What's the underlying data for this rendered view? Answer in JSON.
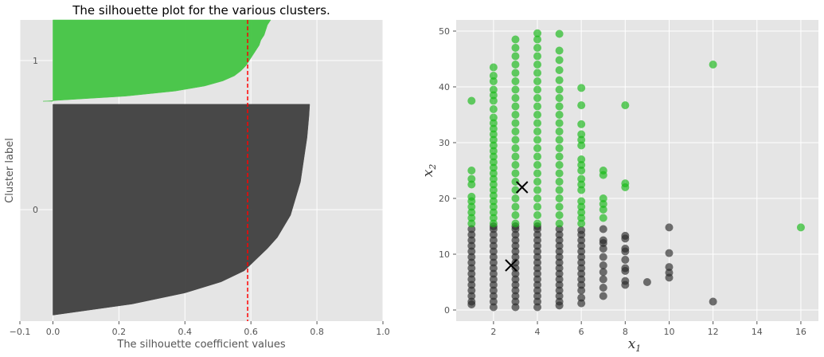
{
  "chart_data": [
    {
      "type": "area",
      "title": "The silhouette plot for the various clusters.",
      "xlabel": "The silhouette coefficient values",
      "ylabel": "Cluster label",
      "xlim": [
        -0.1,
        1.0
      ],
      "xticks": [
        "−0.1",
        "0.0",
        "0.2",
        "0.4",
        "0.6",
        "0.8",
        "1.0"
      ],
      "yticks": [
        "0",
        "1"
      ],
      "grid": true,
      "average_silhouette": 0.59,
      "clusters": [
        {
          "label": "0",
          "color": "#404040",
          "profile": [
            0.0,
            0.24,
            0.4,
            0.51,
            0.58,
            0.615,
            0.65,
            0.68,
            0.7,
            0.72,
            0.73,
            0.74,
            0.75,
            0.755,
            0.76,
            0.765,
            0.77,
            0.773,
            0.776,
            0.778
          ]
        },
        {
          "label": "1",
          "color": "#44c544",
          "profile": [
            -0.03,
            0.22,
            0.37,
            0.46,
            0.515,
            0.55,
            0.57,
            0.585,
            0.595,
            0.605,
            0.615,
            0.625,
            0.63,
            0.64,
            0.645,
            0.65,
            0.66
          ]
        }
      ]
    },
    {
      "type": "scatter",
      "title": "",
      "xlabel": "x1",
      "ylabel": "x2",
      "xlim": [
        0.3,
        16.8
      ],
      "ylim": [
        -2,
        52
      ],
      "xticks": [
        "2",
        "4",
        "6",
        "8",
        "10",
        "12",
        "14",
        "16"
      ],
      "yticks": [
        "0",
        "10",
        "20",
        "30",
        "40",
        "50"
      ],
      "grid": true,
      "series": [
        {
          "color": "#2a2a2a",
          "points": [
            [
              1,
              1
            ],
            [
              1,
              1.5
            ],
            [
              1,
              2.5
            ],
            [
              1,
              3.5
            ],
            [
              1,
              4.5
            ],
            [
              1,
              5.5
            ],
            [
              1,
              6.5
            ],
            [
              1,
              7.5
            ],
            [
              1,
              8.5
            ],
            [
              1,
              9.5
            ],
            [
              1,
              10.5
            ],
            [
              1,
              11.5
            ],
            [
              1,
              12.5
            ],
            [
              1,
              13.5
            ],
            [
              1,
              14.5
            ],
            [
              2,
              0.5
            ],
            [
              2,
              1.5
            ],
            [
              2,
              2.5
            ],
            [
              2,
              3.5
            ],
            [
              2,
              4.5
            ],
            [
              2,
              5.5
            ],
            [
              2,
              6.5
            ],
            [
              2,
              7.5
            ],
            [
              2,
              8.5
            ],
            [
              2,
              9.5
            ],
            [
              2,
              10.5
            ],
            [
              2,
              11.5
            ],
            [
              2,
              12.5
            ],
            [
              2,
              13.5
            ],
            [
              2,
              14.5
            ],
            [
              2,
              15
            ],
            [
              3,
              0.5
            ],
            [
              3,
              1.5
            ],
            [
              3,
              2.5
            ],
            [
              3,
              3.5
            ],
            [
              3,
              4.5
            ],
            [
              3,
              5.5
            ],
            [
              3,
              6.5
            ],
            [
              3,
              7.5
            ],
            [
              3,
              8.5
            ],
            [
              3,
              9.5
            ],
            [
              3,
              10.5
            ],
            [
              3,
              11.5
            ],
            [
              3,
              12.5
            ],
            [
              3,
              13.5
            ],
            [
              3,
              14.5
            ],
            [
              3,
              15
            ],
            [
              4,
              0.5
            ],
            [
              4,
              1.5
            ],
            [
              4,
              2.5
            ],
            [
              4,
              3.5
            ],
            [
              4,
              4.5
            ],
            [
              4,
              5.5
            ],
            [
              4,
              6.5
            ],
            [
              4,
              7.5
            ],
            [
              4,
              8.5
            ],
            [
              4,
              9.5
            ],
            [
              4,
              10.5
            ],
            [
              4,
              11.5
            ],
            [
              4,
              12.5
            ],
            [
              4,
              13.5
            ],
            [
              4,
              14.5
            ],
            [
              4,
              15
            ],
            [
              5,
              0.8
            ],
            [
              5,
              1.5
            ],
            [
              5,
              2.5
            ],
            [
              5,
              3.5
            ],
            [
              5,
              4.5
            ],
            [
              5,
              5.5
            ],
            [
              5,
              6.5
            ],
            [
              5,
              7.5
            ],
            [
              5,
              8.5
            ],
            [
              5,
              9.5
            ],
            [
              5,
              10.5
            ],
            [
              5,
              11.5
            ],
            [
              5,
              12.5
            ],
            [
              5,
              13.5
            ],
            [
              5,
              14.5
            ],
            [
              6,
              1.2
            ],
            [
              6,
              2.2
            ],
            [
              6,
              3.5
            ],
            [
              6,
              4.5
            ],
            [
              6,
              5.5
            ],
            [
              6,
              6.5
            ],
            [
              6,
              7.5
            ],
            [
              6,
              8.5
            ],
            [
              6,
              9.5
            ],
            [
              6,
              10.5
            ],
            [
              6,
              11.5
            ],
            [
              6,
              12.5
            ],
            [
              6,
              13.5
            ],
            [
              6,
              14.3
            ],
            [
              7,
              2.5
            ],
            [
              7,
              4
            ],
            [
              7,
              5.5
            ],
            [
              7,
              6.8
            ],
            [
              7,
              8
            ],
            [
              7,
              9.5
            ],
            [
              7,
              11
            ],
            [
              7,
              12
            ],
            [
              7,
              12.5
            ],
            [
              7,
              14.5
            ],
            [
              8,
              4.5
            ],
            [
              8,
              5.2
            ],
            [
              8,
              7
            ],
            [
              8,
              7.5
            ],
            [
              8,
              9
            ],
            [
              8,
              10.5
            ],
            [
              8,
              11
            ],
            [
              8,
              12.8
            ],
            [
              8,
              13.3
            ],
            [
              9,
              5
            ],
            [
              10,
              5.8
            ],
            [
              10,
              6.7
            ],
            [
              10,
              7.7
            ],
            [
              10,
              10.2
            ],
            [
              10,
              14.8
            ],
            [
              12,
              1.5
            ]
          ]
        },
        {
          "color": "#16b816",
          "points": [
            [
              1,
              15.5
            ],
            [
              1,
              16.5
            ],
            [
              1,
              17.5
            ],
            [
              1,
              18.5
            ],
            [
              1,
              19.5
            ],
            [
              1,
              20.3
            ],
            [
              1,
              22.5
            ],
            [
              1,
              23.5
            ],
            [
              1,
              25
            ],
            [
              1,
              37.5
            ],
            [
              2,
              15.5
            ],
            [
              2,
              16.5
            ],
            [
              2,
              17.5
            ],
            [
              2,
              18.5
            ],
            [
              2,
              19.5
            ],
            [
              2,
              20.5
            ],
            [
              2,
              21.5
            ],
            [
              2,
              22.5
            ],
            [
              2,
              23.5
            ],
            [
              2,
              24.5
            ],
            [
              2,
              25.5
            ],
            [
              2,
              26.5
            ],
            [
              2,
              27.5
            ],
            [
              2,
              28.5
            ],
            [
              2,
              29.5
            ],
            [
              2,
              30.5
            ],
            [
              2,
              31.5
            ],
            [
              2,
              32.5
            ],
            [
              2,
              33.5
            ],
            [
              2,
              34.5
            ],
            [
              2,
              36
            ],
            [
              2,
              37.5
            ],
            [
              2,
              38.5
            ],
            [
              2,
              39.5
            ],
            [
              2,
              41
            ],
            [
              2,
              42
            ],
            [
              2,
              43.5
            ],
            [
              3,
              15.5
            ],
            [
              3,
              17
            ],
            [
              3,
              18.5
            ],
            [
              3,
              20
            ],
            [
              3,
              21.5
            ],
            [
              3,
              23
            ],
            [
              3,
              24.5
            ],
            [
              3,
              26
            ],
            [
              3,
              27.5
            ],
            [
              3,
              29
            ],
            [
              3,
              30.5
            ],
            [
              3,
              32
            ],
            [
              3,
              33.5
            ],
            [
              3,
              35
            ],
            [
              3,
              36.5
            ],
            [
              3,
              38
            ],
            [
              3,
              39.5
            ],
            [
              3,
              41
            ],
            [
              3,
              42.5
            ],
            [
              3,
              44
            ],
            [
              3,
              45.5
            ],
            [
              3,
              47
            ],
            [
              3,
              48.5
            ],
            [
              4,
              15.5
            ],
            [
              4,
              17
            ],
            [
              4,
              18.5
            ],
            [
              4,
              20
            ],
            [
              4,
              21.5
            ],
            [
              4,
              23
            ],
            [
              4,
              24.5
            ],
            [
              4,
              26
            ],
            [
              4,
              27.5
            ],
            [
              4,
              29
            ],
            [
              4,
              30.5
            ],
            [
              4,
              32
            ],
            [
              4,
              33.5
            ],
            [
              4,
              35
            ],
            [
              4,
              36.5
            ],
            [
              4,
              38
            ],
            [
              4,
              39.5
            ],
            [
              4,
              41
            ],
            [
              4,
              42.5
            ],
            [
              4,
              44
            ],
            [
              4,
              45.5
            ],
            [
              4,
              47
            ],
            [
              4,
              48.5
            ],
            [
              4,
              49.6
            ],
            [
              5,
              15.5
            ],
            [
              5,
              17
            ],
            [
              5,
              18.5
            ],
            [
              5,
              20
            ],
            [
              5,
              21.5
            ],
            [
              5,
              23
            ],
            [
              5,
              24.5
            ],
            [
              5,
              26
            ],
            [
              5,
              27.5
            ],
            [
              5,
              29
            ],
            [
              5,
              30.5
            ],
            [
              5,
              32
            ],
            [
              5,
              33.5
            ],
            [
              5,
              35
            ],
            [
              5,
              36.5
            ],
            [
              5,
              38
            ],
            [
              5,
              39.5
            ],
            [
              5,
              41.2
            ],
            [
              5,
              43
            ],
            [
              5,
              44.8
            ],
            [
              5,
              46.5
            ],
            [
              5,
              49.5
            ],
            [
              6,
              15.5
            ],
            [
              6,
              16.5
            ],
            [
              6,
              17.5
            ],
            [
              6,
              18.5
            ],
            [
              6,
              19.5
            ],
            [
              6,
              21.5
            ],
            [
              6,
              22.5
            ],
            [
              6,
              23.5
            ],
            [
              6,
              25
            ],
            [
              6,
              26
            ],
            [
              6,
              27
            ],
            [
              6,
              29.5
            ],
            [
              6,
              30.5
            ],
            [
              6,
              31.5
            ],
            [
              6,
              33.3
            ],
            [
              6,
              36.7
            ],
            [
              6,
              39.8
            ],
            [
              7,
              16.5
            ],
            [
              7,
              18
            ],
            [
              7,
              19
            ],
            [
              7,
              20
            ],
            [
              7,
              24.2
            ],
            [
              7,
              25
            ],
            [
              8,
              22
            ],
            [
              8,
              22.7
            ],
            [
              8,
              36.7
            ],
            [
              12,
              44
            ],
            [
              16,
              14.8
            ]
          ]
        }
      ],
      "centroids": [
        [
          3.3,
          22
        ],
        [
          2.8,
          8
        ]
      ]
    }
  ]
}
